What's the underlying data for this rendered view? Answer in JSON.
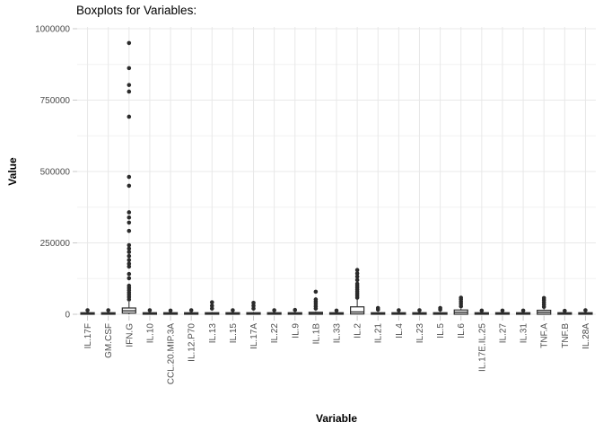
{
  "title": "Boxplots for Variables:",
  "axes": {
    "x_title": "Variable",
    "y_title": "Value"
  },
  "chart_data": {
    "type": "boxplot",
    "title": "Boxplots for Variables:",
    "xlabel": "Variable",
    "ylabel": "Value",
    "ylim": [
      0,
      1000000
    ],
    "yticks": [
      0,
      250000,
      500000,
      750000,
      1000000
    ],
    "ytick_labels": [
      "0",
      "250000",
      "500000",
      "750000",
      "1000000"
    ],
    "minor_yticks": [
      125000,
      375000,
      625000,
      875000
    ],
    "grid": "horizontal major+minor, vertical major per category",
    "legend": "none",
    "colors": {
      "ink": "#2b2b2b",
      "box_fill": "#ffffff",
      "grid_major": "#e8e8e8",
      "grid_minor": "#f2f2f2",
      "tick": "#c9c9c9",
      "axis_text": "#4d4d4d",
      "title_text": "#000000",
      "background": "#ffffff"
    },
    "categories": [
      "IL.17F",
      "GM.CSF",
      "IFN.G",
      "IL.10",
      "CCL.20.MIP.3A",
      "IL.12.P70",
      "IL.13",
      "IL.15",
      "IL.17A",
      "IL.22",
      "IL.9",
      "IL.1B",
      "IL.33",
      "IL.2",
      "IL.21",
      "IL.4",
      "IL.23",
      "IL.5",
      "IL.6",
      "IL.17E.IL.25",
      "IL.27",
      "IL.31",
      "TNF.A",
      "TNF.B",
      "IL.28A"
    ],
    "boxes": [
      {
        "category": "IL.17F",
        "q1": 0,
        "median": 2500,
        "q3": 5500,
        "whisker_low": 0,
        "whisker_high": 8000,
        "outliers": [
          14000
        ]
      },
      {
        "category": "GM.CSF",
        "q1": 0,
        "median": 2500,
        "q3": 5500,
        "whisker_low": 0,
        "whisker_high": 8000,
        "outliers": [
          14000
        ]
      },
      {
        "category": "IFN.G",
        "q1": 4000,
        "median": 12000,
        "q3": 22000,
        "whisker_low": 0,
        "whisker_high": 44000,
        "outliers": [
          52000,
          60000,
          68000,
          76000,
          84000,
          92000,
          100000,
          126000,
          141000,
          167000,
          177000,
          190000,
          204000,
          218000,
          230000,
          242000,
          292000,
          321000,
          339000,
          357000,
          450000,
          481000,
          692000,
          780000,
          803000,
          862000,
          950000
        ]
      },
      {
        "category": "IL.10",
        "q1": 0,
        "median": 2500,
        "q3": 5500,
        "whisker_low": 0,
        "whisker_high": 8000,
        "outliers": [
          14000
        ]
      },
      {
        "category": "CCL.20.MIP.3A",
        "q1": 0,
        "median": 2500,
        "q3": 5500,
        "whisker_low": 0,
        "whisker_high": 8000,
        "outliers": [
          13000
        ]
      },
      {
        "category": "IL.12.P70",
        "q1": 0,
        "median": 2500,
        "q3": 5500,
        "whisker_low": 0,
        "whisker_high": 8000,
        "outliers": [
          14000
        ]
      },
      {
        "category": "IL.13",
        "q1": 0,
        "median": 2500,
        "q3": 5500,
        "whisker_low": 0,
        "whisker_high": 8000,
        "outliers": [
          20000,
          30000,
          42000
        ]
      },
      {
        "category": "IL.15",
        "q1": 0,
        "median": 2500,
        "q3": 5500,
        "whisker_low": 0,
        "whisker_high": 8000,
        "outliers": [
          14000
        ]
      },
      {
        "category": "IL.17A",
        "q1": 0,
        "median": 2500,
        "q3": 5500,
        "whisker_low": 0,
        "whisker_high": 8000,
        "outliers": [
          20000,
          30000,
          40000
        ]
      },
      {
        "category": "IL.22",
        "q1": 0,
        "median": 2500,
        "q3": 5500,
        "whisker_low": 0,
        "whisker_high": 8000,
        "outliers": [
          14000
        ]
      },
      {
        "category": "IL.9",
        "q1": 0,
        "median": 2500,
        "q3": 5500,
        "whisker_low": 0,
        "whisker_high": 8000,
        "outliers": [
          15000
        ]
      },
      {
        "category": "IL.1B",
        "q1": 0,
        "median": 3000,
        "q3": 7000,
        "whisker_low": 0,
        "whisker_high": 10000,
        "outliers": [
          20000,
          28000,
          36000,
          44000,
          52000,
          79000
        ]
      },
      {
        "category": "IL.33",
        "q1": 0,
        "median": 2500,
        "q3": 5500,
        "whisker_low": 0,
        "whisker_high": 8000,
        "outliers": [
          13000
        ]
      },
      {
        "category": "IL.2",
        "q1": 1000,
        "median": 8000,
        "q3": 26000,
        "whisker_low": 0,
        "whisker_high": 52000,
        "outliers": [
          58000,
          65000,
          72000,
          79000,
          86000,
          93000,
          100000,
          107000,
          120000,
          132000,
          143000,
          155000
        ]
      },
      {
        "category": "IL.21",
        "q1": 0,
        "median": 2500,
        "q3": 5500,
        "whisker_low": 0,
        "whisker_high": 8000,
        "outliers": [
          16000,
          22000
        ]
      },
      {
        "category": "IL.4",
        "q1": 0,
        "median": 2500,
        "q3": 5500,
        "whisker_low": 0,
        "whisker_high": 8000,
        "outliers": [
          14000
        ]
      },
      {
        "category": "IL.23",
        "q1": 0,
        "median": 2500,
        "q3": 5500,
        "whisker_low": 0,
        "whisker_high": 8000,
        "outliers": [
          14000
        ]
      },
      {
        "category": "IL.5",
        "q1": 0,
        "median": 2500,
        "q3": 5500,
        "whisker_low": 0,
        "whisker_high": 8000,
        "outliers": [
          16000,
          22000
        ]
      },
      {
        "category": "IL.6",
        "q1": 0,
        "median": 7000,
        "q3": 15000,
        "whisker_low": 0,
        "whisker_high": 20000,
        "outliers": [
          28000,
          36000,
          44000,
          52000,
          58000
        ]
      },
      {
        "category": "IL.17E.IL.25",
        "q1": 0,
        "median": 2500,
        "q3": 5500,
        "whisker_low": 0,
        "whisker_high": 8000,
        "outliers": [
          13000
        ]
      },
      {
        "category": "IL.27",
        "q1": 0,
        "median": 2500,
        "q3": 5500,
        "whisker_low": 0,
        "whisker_high": 8000,
        "outliers": [
          13000
        ]
      },
      {
        "category": "IL.31",
        "q1": 0,
        "median": 2500,
        "q3": 5500,
        "whisker_low": 0,
        "whisker_high": 8000,
        "outliers": [
          13000
        ]
      },
      {
        "category": "TNF.A",
        "q1": 0,
        "median": 7000,
        "q3": 14000,
        "whisker_low": 0,
        "whisker_high": 18000,
        "outliers": [
          26000,
          34000,
          42000,
          50000,
          57000
        ]
      },
      {
        "category": "TNF.B",
        "q1": 0,
        "median": 2500,
        "q3": 5500,
        "whisker_low": 0,
        "whisker_high": 8000,
        "outliers": [
          12000
        ]
      },
      {
        "category": "IL.28A",
        "q1": 0,
        "median": 2500,
        "q3": 5500,
        "whisker_low": 0,
        "whisker_high": 8000,
        "outliers": [
          14000
        ]
      }
    ]
  }
}
